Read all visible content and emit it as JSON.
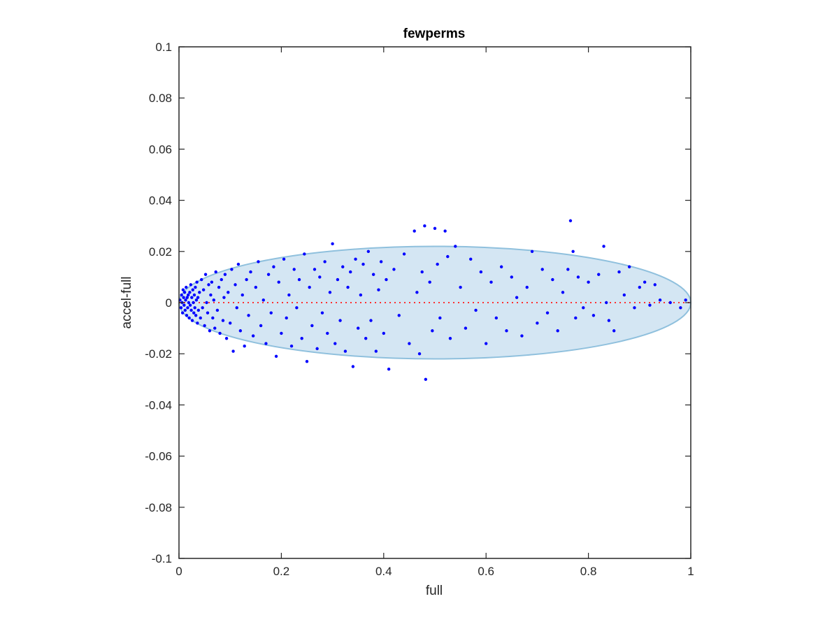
{
  "chart_data": {
    "type": "scatter",
    "title": "fewperms",
    "xlabel": "full",
    "ylabel": "accel-full",
    "xlim": [
      0,
      1
    ],
    "ylim": [
      -0.1,
      0.1
    ],
    "xticks": [
      0,
      0.2,
      0.4,
      0.6,
      0.8,
      1
    ],
    "xtick_labels": [
      "0",
      "0.2",
      "0.4",
      "0.6",
      "0.8",
      "1"
    ],
    "yticks": [
      -0.1,
      -0.08,
      -0.06,
      -0.04,
      -0.02,
      0,
      0.02,
      0.04,
      0.06,
      0.08,
      0.1
    ],
    "ytick_labels": [
      "-0.1",
      "-0.08",
      "-0.06",
      "-0.04",
      "-0.02",
      "0",
      "0.02",
      "0.04",
      "0.06",
      "0.08",
      "0.1"
    ],
    "grid": false,
    "ellipse": {
      "center": [
        0.5,
        0.0
      ],
      "x_half_width": 0.5,
      "y_half_height": 0.022,
      "fill": "#d4e6f3",
      "stroke": "#8fc0dd"
    },
    "reference_line": {
      "y": 0,
      "x_range": [
        0,
        1
      ],
      "style": "dotted",
      "color": "#ff3030"
    },
    "series": [
      {
        "color": "#0000ff",
        "points": [
          [
            0.002,
            0.001
          ],
          [
            0.004,
            -0.002
          ],
          [
            0.005,
            0.003
          ],
          [
            0.006,
            0.0
          ],
          [
            0.007,
            -0.004
          ],
          [
            0.008,
            0.005
          ],
          [
            0.009,
            0.002
          ],
          [
            0.01,
            -0.001
          ],
          [
            0.011,
            0.004
          ],
          [
            0.012,
            -0.003
          ],
          [
            0.013,
            0.001
          ],
          [
            0.014,
            0.006
          ],
          [
            0.015,
            -0.005
          ],
          [
            0.016,
            0.002
          ],
          [
            0.017,
            -0.002
          ],
          [
            0.018,
            0.003
          ],
          [
            0.019,
            0.0
          ],
          [
            0.02,
            -0.006
          ],
          [
            0.021,
            0.004
          ],
          [
            0.022,
            -0.001
          ],
          [
            0.023,
            0.007
          ],
          [
            0.024,
            -0.003
          ],
          [
            0.025,
            0.002
          ],
          [
            0.026,
            -0.007
          ],
          [
            0.027,
            0.005
          ],
          [
            0.028,
            0.0
          ],
          [
            0.029,
            -0.004
          ],
          [
            0.03,
            0.003
          ],
          [
            0.031,
            -0.002
          ],
          [
            0.032,
            0.006
          ],
          [
            0.033,
            -0.005
          ],
          [
            0.034,
            0.001
          ],
          [
            0.035,
            0.008
          ],
          [
            0.036,
            -0.008
          ],
          [
            0.037,
            0.002
          ],
          [
            0.038,
            -0.003
          ],
          [
            0.04,
            0.004
          ],
          [
            0.042,
            -0.006
          ],
          [
            0.044,
            0.009
          ],
          [
            0.046,
            -0.002
          ],
          [
            0.048,
            0.005
          ],
          [
            0.05,
            -0.009
          ],
          [
            0.052,
            0.011
          ],
          [
            0.054,
            0.0
          ],
          [
            0.056,
            -0.004
          ],
          [
            0.058,
            0.007
          ],
          [
            0.06,
            -0.011
          ],
          [
            0.062,
            0.003
          ],
          [
            0.064,
            0.008
          ],
          [
            0.066,
            -0.006
          ],
          [
            0.068,
            0.001
          ],
          [
            0.07,
            -0.01
          ],
          [
            0.072,
            0.012
          ],
          [
            0.075,
            -0.003
          ],
          [
            0.078,
            0.006
          ],
          [
            0.08,
            -0.012
          ],
          [
            0.083,
            0.009
          ],
          [
            0.086,
            -0.007
          ],
          [
            0.088,
            0.002
          ],
          [
            0.09,
            0.011
          ],
          [
            0.093,
            -0.014
          ],
          [
            0.096,
            0.004
          ],
          [
            0.1,
            -0.008
          ],
          [
            0.103,
            0.013
          ],
          [
            0.106,
            -0.019
          ],
          [
            0.11,
            0.007
          ],
          [
            0.113,
            -0.002
          ],
          [
            0.116,
            0.015
          ],
          [
            0.12,
            -0.011
          ],
          [
            0.124,
            0.003
          ],
          [
            0.128,
            -0.017
          ],
          [
            0.132,
            0.009
          ],
          [
            0.136,
            -0.005
          ],
          [
            0.14,
            0.012
          ],
          [
            0.145,
            -0.013
          ],
          [
            0.15,
            0.006
          ],
          [
            0.155,
            0.016
          ],
          [
            0.16,
            -0.009
          ],
          [
            0.165,
            0.001
          ],
          [
            0.17,
            -0.016
          ],
          [
            0.175,
            0.011
          ],
          [
            0.18,
            -0.004
          ],
          [
            0.185,
            0.014
          ],
          [
            0.19,
            -0.021
          ],
          [
            0.195,
            0.008
          ],
          [
            0.2,
            -0.012
          ],
          [
            0.205,
            0.017
          ],
          [
            0.21,
            -0.006
          ],
          [
            0.215,
            0.003
          ],
          [
            0.22,
            -0.017
          ],
          [
            0.225,
            0.013
          ],
          [
            0.23,
            -0.002
          ],
          [
            0.235,
            0.009
          ],
          [
            0.24,
            -0.014
          ],
          [
            0.245,
            0.019
          ],
          [
            0.25,
            -0.023
          ],
          [
            0.255,
            0.006
          ],
          [
            0.26,
            -0.009
          ],
          [
            0.265,
            0.013
          ],
          [
            0.27,
            -0.018
          ],
          [
            0.275,
            0.01
          ],
          [
            0.28,
            -0.004
          ],
          [
            0.285,
            0.016
          ],
          [
            0.29,
            -0.012
          ],
          [
            0.295,
            0.004
          ],
          [
            0.3,
            0.023
          ],
          [
            0.305,
            -0.016
          ],
          [
            0.31,
            0.009
          ],
          [
            0.315,
            -0.007
          ],
          [
            0.32,
            0.014
          ],
          [
            0.325,
            -0.019
          ],
          [
            0.33,
            0.006
          ],
          [
            0.335,
            0.012
          ],
          [
            0.34,
            -0.025
          ],
          [
            0.345,
            0.017
          ],
          [
            0.35,
            -0.01
          ],
          [
            0.355,
            0.003
          ],
          [
            0.36,
            0.015
          ],
          [
            0.365,
            -0.014
          ],
          [
            0.37,
            0.02
          ],
          [
            0.375,
            -0.007
          ],
          [
            0.38,
            0.011
          ],
          [
            0.385,
            -0.019
          ],
          [
            0.39,
            0.005
          ],
          [
            0.395,
            0.016
          ],
          [
            0.4,
            -0.012
          ],
          [
            0.405,
            0.009
          ],
          [
            0.41,
            -0.026
          ],
          [
            0.42,
            0.013
          ],
          [
            0.43,
            -0.005
          ],
          [
            0.44,
            0.019
          ],
          [
            0.45,
            -0.016
          ],
          [
            0.46,
            0.028
          ],
          [
            0.465,
            0.004
          ],
          [
            0.47,
            -0.02
          ],
          [
            0.475,
            0.012
          ],
          [
            0.48,
            0.03
          ],
          [
            0.482,
            -0.03
          ],
          [
            0.49,
            0.008
          ],
          [
            0.495,
            -0.011
          ],
          [
            0.5,
            0.029
          ],
          [
            0.505,
            0.015
          ],
          [
            0.51,
            -0.006
          ],
          [
            0.52,
            0.028
          ],
          [
            0.525,
            0.018
          ],
          [
            0.53,
            -0.014
          ],
          [
            0.54,
            0.022
          ],
          [
            0.55,
            0.006
          ],
          [
            0.56,
            -0.01
          ],
          [
            0.57,
            0.017
          ],
          [
            0.58,
            -0.003
          ],
          [
            0.59,
            0.012
          ],
          [
            0.6,
            -0.016
          ],
          [
            0.61,
            0.008
          ],
          [
            0.62,
            -0.006
          ],
          [
            0.63,
            0.014
          ],
          [
            0.64,
            -0.011
          ],
          [
            0.65,
            0.01
          ],
          [
            0.66,
            0.002
          ],
          [
            0.67,
            -0.013
          ],
          [
            0.68,
            0.006
          ],
          [
            0.69,
            0.02
          ],
          [
            0.7,
            -0.008
          ],
          [
            0.71,
            0.013
          ],
          [
            0.72,
            -0.004
          ],
          [
            0.73,
            0.009
          ],
          [
            0.74,
            -0.011
          ],
          [
            0.75,
            0.004
          ],
          [
            0.76,
            0.013
          ],
          [
            0.765,
            0.032
          ],
          [
            0.77,
            0.02
          ],
          [
            0.775,
            -0.006
          ],
          [
            0.78,
            0.01
          ],
          [
            0.79,
            -0.002
          ],
          [
            0.8,
            0.008
          ],
          [
            0.81,
            -0.005
          ],
          [
            0.82,
            0.011
          ],
          [
            0.83,
            0.022
          ],
          [
            0.835,
            0.0
          ],
          [
            0.84,
            -0.007
          ],
          [
            0.85,
            -0.011
          ],
          [
            0.86,
            0.012
          ],
          [
            0.87,
            0.003
          ],
          [
            0.88,
            0.014
          ],
          [
            0.89,
            -0.002
          ],
          [
            0.9,
            0.006
          ],
          [
            0.91,
            0.008
          ],
          [
            0.92,
            -0.001
          ],
          [
            0.93,
            0.007
          ],
          [
            0.94,
            0.001
          ],
          [
            0.96,
            0.0
          ],
          [
            0.98,
            -0.002
          ],
          [
            0.99,
            0.001
          ]
        ]
      }
    ]
  }
}
